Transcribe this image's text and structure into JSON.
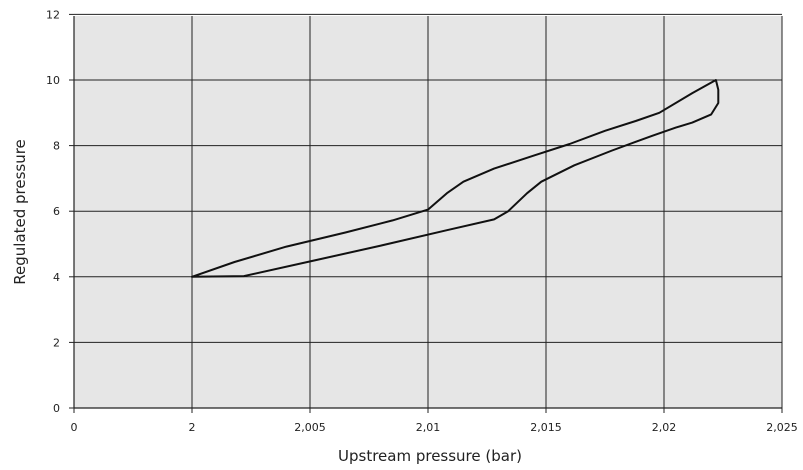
{
  "chart_data": {
    "type": "line",
    "xlabel": "Upstream pressure (bar)",
    "ylabel": "Regulated pressure",
    "x_ticks": [
      "0",
      "2",
      "2,005",
      "2,01",
      "2,015",
      "2,02",
      "2,025"
    ],
    "y_ticks": [
      "0",
      "2",
      "4",
      "6",
      "8",
      "10",
      "12"
    ],
    "grid": true,
    "colors": {
      "plot_background": "#e6e6e6",
      "grid": "#222222",
      "curve": "#111111"
    },
    "series": [
      {
        "points": [
          [
            2.0,
            4.0
          ],
          [
            2.0022,
            4.02
          ],
          [
            2.0052,
            4.5
          ],
          [
            2.008,
            4.95
          ],
          [
            2.0108,
            5.42
          ],
          [
            2.0128,
            5.75
          ],
          [
            2.0134,
            6.0
          ],
          [
            2.0142,
            6.55
          ],
          [
            2.0148,
            6.9
          ],
          [
            2.0162,
            7.4
          ],
          [
            2.0178,
            7.85
          ],
          [
            2.0195,
            8.3
          ],
          [
            2.0205,
            8.55
          ],
          [
            2.0212,
            8.7
          ],
          [
            2.022,
            8.95
          ],
          [
            2.0223,
            9.3
          ],
          [
            2.0223,
            9.7
          ],
          [
            2.0222,
            10.0
          ],
          [
            2.0212,
            9.6
          ],
          [
            2.0198,
            9.0
          ],
          [
            2.0188,
            8.75
          ],
          [
            2.0175,
            8.45
          ],
          [
            2.016,
            8.05
          ],
          [
            2.0145,
            7.7
          ],
          [
            2.0128,
            7.3
          ],
          [
            2.0115,
            6.9
          ],
          [
            2.0108,
            6.55
          ],
          [
            2.01,
            6.05
          ],
          [
            2.0085,
            5.72
          ],
          [
            2.0065,
            5.35
          ],
          [
            2.004,
            4.92
          ],
          [
            2.0018,
            4.45
          ],
          [
            2.0,
            4.0
          ]
        ]
      }
    ]
  }
}
